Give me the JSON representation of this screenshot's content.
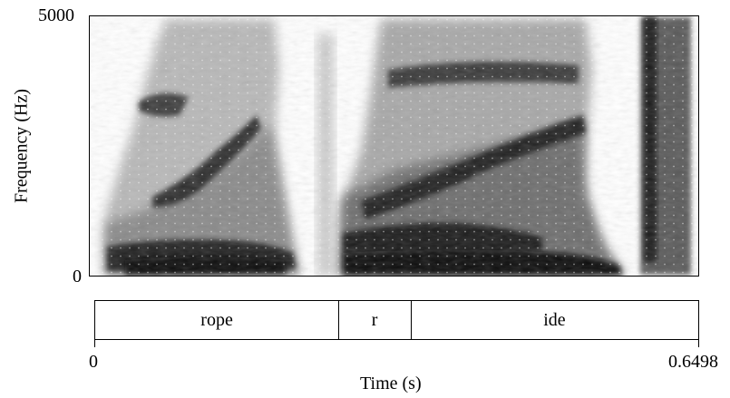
{
  "chart_data": {
    "type": "heatmap",
    "subtype": "spectrogram",
    "xlabel": "Time (s)",
    "ylabel": "Frequency (Hz)",
    "xlim": [
      0,
      0.6498
    ],
    "ylim": [
      0,
      5000
    ],
    "x_tick_labels": [
      "0",
      "0.6498"
    ],
    "y_tick_labels": [
      "0",
      "5000"
    ],
    "colormap": "grayscale (darker = more energy)",
    "segments": [
      {
        "label": "rope",
        "start": 0.0,
        "end": 0.262
      },
      {
        "label": "r",
        "start": 0.262,
        "end": 0.34
      },
      {
        "label": "ide",
        "start": 0.34,
        "end": 0.6498
      }
    ]
  },
  "colors": {
    "axis": "#000000",
    "background": "#ffffff"
  }
}
